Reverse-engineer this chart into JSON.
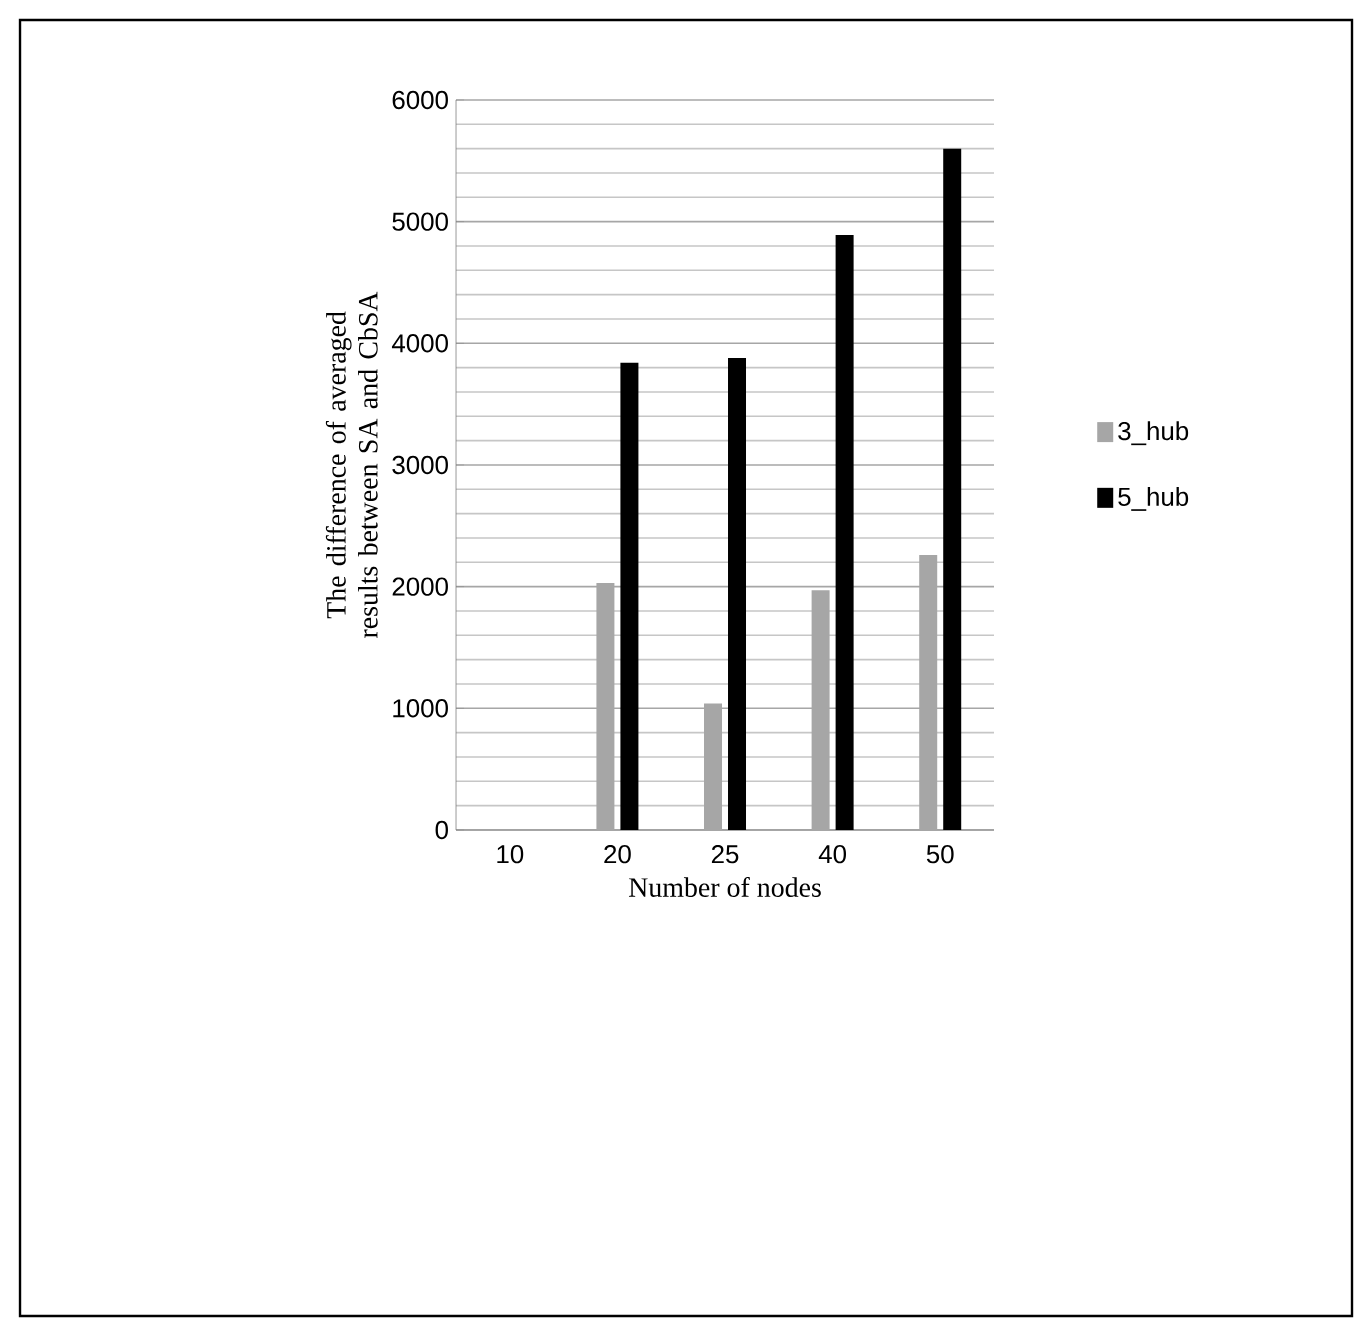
{
  "chart_data": {
    "type": "bar",
    "xlabel": "Number of nodes",
    "ylabel": "The difference of averaged results between SA and CbSA",
    "categories": [
      "10",
      "20",
      "25",
      "40",
      "50"
    ],
    "series": [
      {
        "name": "3_hub",
        "color": "#a6a6a6",
        "values": [
          0,
          2030,
          1040,
          1970,
          2260
        ]
      },
      {
        "name": "5_hub",
        "color": "#000000",
        "values": [
          0,
          3840,
          3880,
          4890,
          5600
        ]
      }
    ],
    "ylim": [
      0,
      6000
    ],
    "yticks": [
      0,
      1000,
      2000,
      3000,
      4000,
      5000,
      6000
    ],
    "grid": "y",
    "legend": "right"
  }
}
